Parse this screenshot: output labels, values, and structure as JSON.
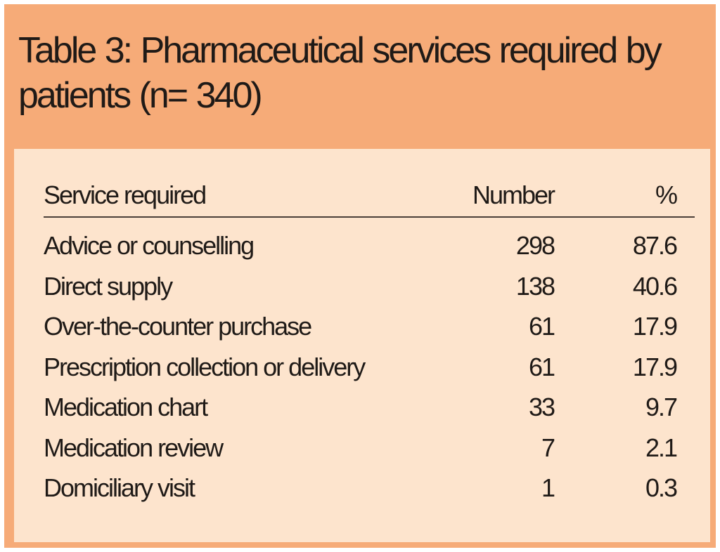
{
  "table": {
    "title": "Table 3: Pharmaceutical services required by patients (n= 340)",
    "columns": {
      "service": "Service required",
      "number": "Number",
      "percent": "%"
    },
    "rows": [
      {
        "service": "Advice or counselling",
        "number": "298",
        "percent": "87.6"
      },
      {
        "service": "Direct supply",
        "number": "138",
        "percent": "40.6"
      },
      {
        "service": "Over-the-counter purchase",
        "number": "61",
        "percent": "17.9"
      },
      {
        "service": "Prescription collection or delivery",
        "number": "61",
        "percent": "17.9"
      },
      {
        "service": "Medication chart",
        "number": "33",
        "percent": "9.7"
      },
      {
        "service": "Medication review",
        "number": "7",
        "percent": "2.1"
      },
      {
        "service": "Domiciliary visit",
        "number": "1",
        "percent": "0.3"
      }
    ],
    "colors": {
      "header_band": "#f6ab78",
      "body_panel": "#fde4cd",
      "text": "#1f1a17"
    }
  }
}
